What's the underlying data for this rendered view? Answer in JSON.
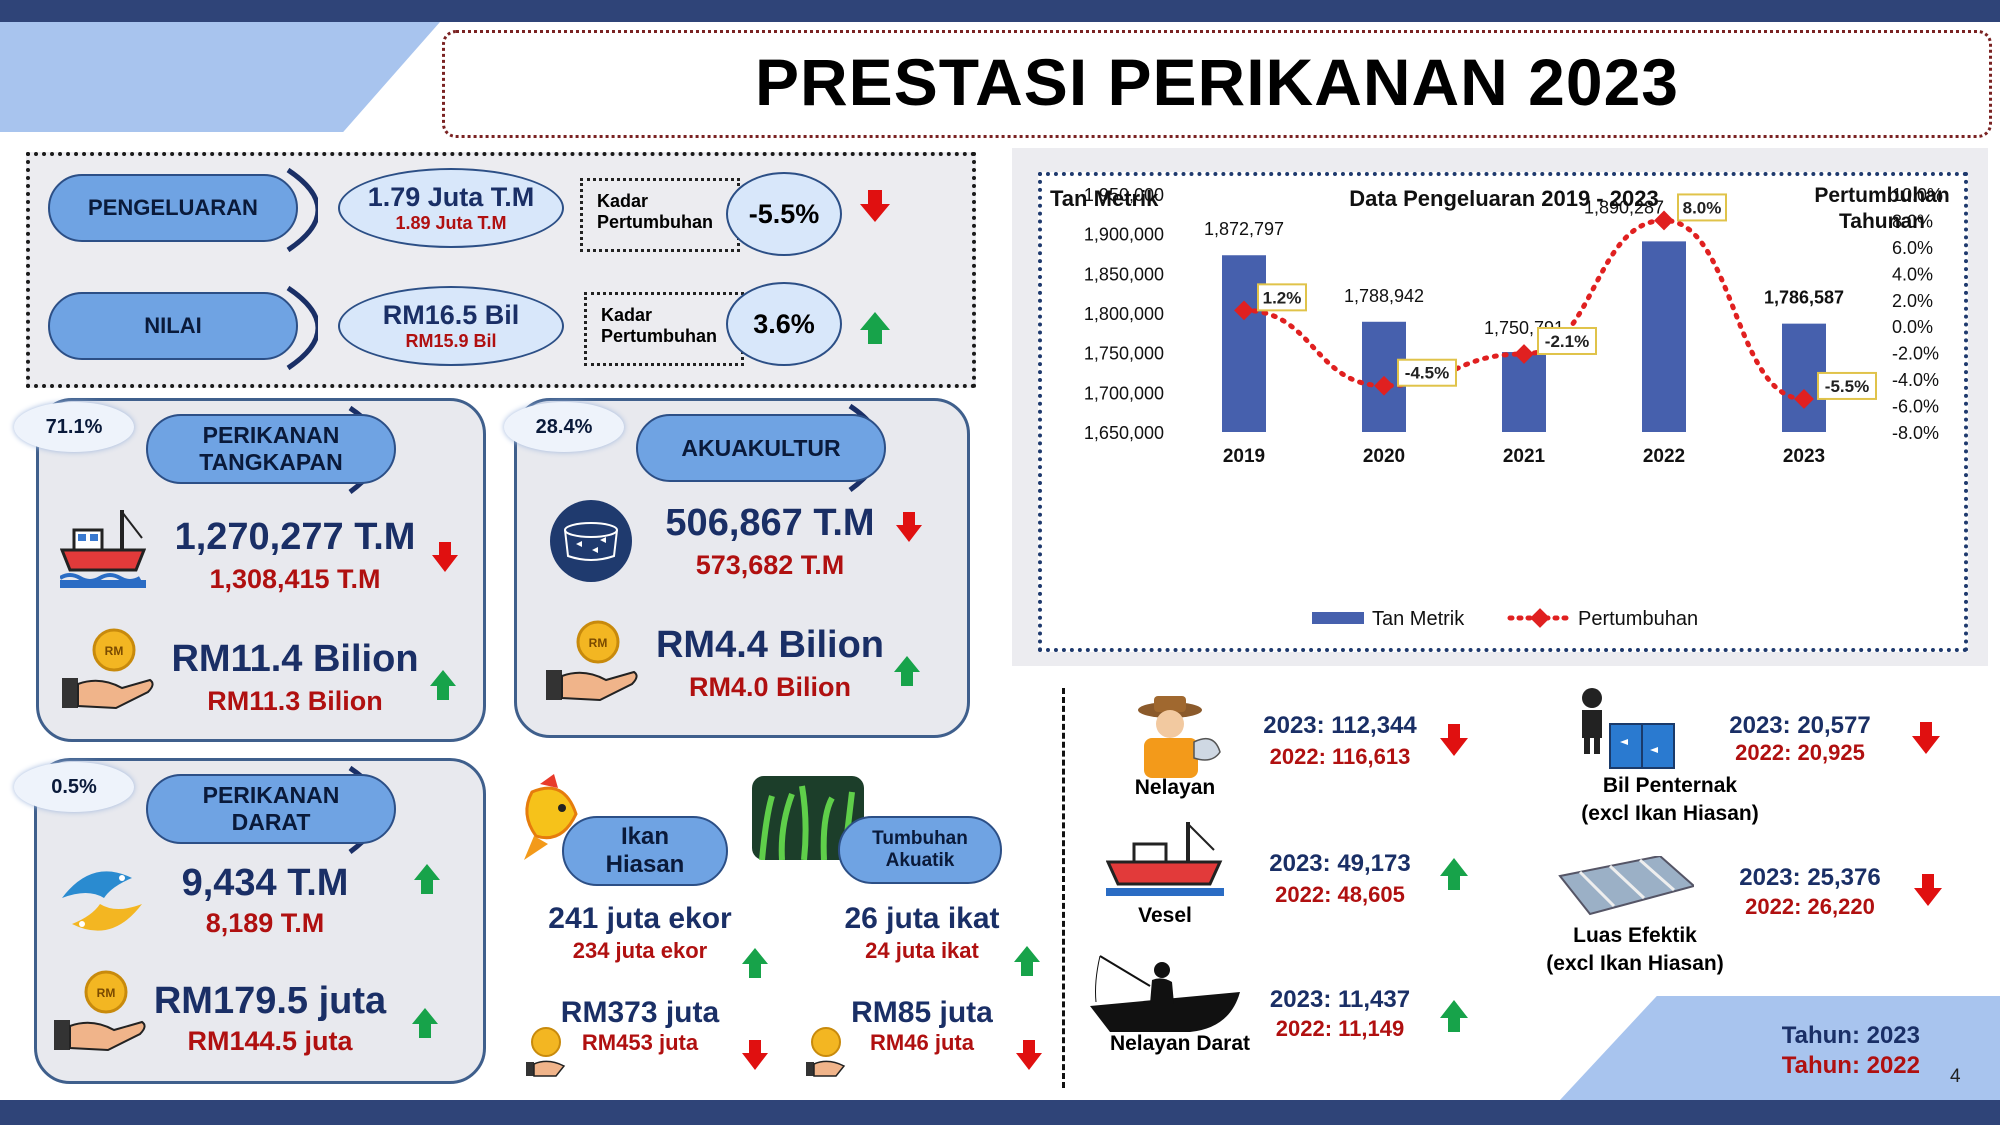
{
  "title": "PRESTASI PERIKANAN 2023",
  "summary": {
    "pengeluaran": {
      "label": "PENGELUARAN",
      "value": "1.79 Juta T.M",
      "prev": "1.89 Juta T.M",
      "kadar_label1": "Kadar",
      "kadar_label2": "Pertumbuhan",
      "rate": "-5.5%"
    },
    "nilai": {
      "label": "NILAI",
      "value": "RM16.5 Bil",
      "prev": "RM15.9 Bil",
      "kadar_label1": "Kadar",
      "kadar_label2": "Pertumbuhan",
      "rate": "3.6%"
    }
  },
  "tangkapan": {
    "share": "71.1%",
    "label1": "PERIKANAN",
    "label2": "TANGKAPAN",
    "qty": "1,270,277 T.M",
    "qty_prev": "1,308,415 T.M",
    "val": "RM11.4 Bilion",
    "val_prev": "RM11.3 Bilion"
  },
  "akuakultur": {
    "share": "28.4%",
    "label": "AKUAKULTUR",
    "qty": "506,867 T.M",
    "qty_prev": "573,682 T.M",
    "val": "RM4.4 Bilion",
    "val_prev": "RM4.0 Bilion"
  },
  "darat": {
    "share": "0.5%",
    "label1": "PERIKANAN",
    "label2": "DARAT",
    "qty": "9,434 T.M",
    "qty_prev": "8,189 T.M",
    "val": "RM179.5 juta",
    "val_prev": "RM144.5 juta"
  },
  "hiasan": {
    "label1": "Ikan",
    "label2": "Hiasan",
    "qty": "241 juta ekor",
    "qty_prev": "234 juta ekor",
    "val": "RM373 juta",
    "val_prev": "RM453 juta"
  },
  "tumbuhan": {
    "label1": "Tumbuhan",
    "label2": "Akuatik",
    "qty": "26 juta ikat",
    "qty_prev": "24 juta ikat",
    "val": "RM85 juta",
    "val_prev": "RM46 juta"
  },
  "stats": {
    "nelayan": {
      "label": "Nelayan",
      "y2023": "2023: 112,344",
      "y2022": "2022: 116,613"
    },
    "vesel": {
      "label": "Vesel",
      "y2023": "2023: 49,173",
      "y2022": "2022: 48,605"
    },
    "darat": {
      "label": "Nelayan Darat",
      "y2023": "2023: 11,437",
      "y2022": "2022: 11,149"
    },
    "penternak": {
      "label1": "Bil Penternak",
      "label2": "(excl Ikan Hiasan)",
      "y2023": "2023: 20,577",
      "y2022": "2022: 20,925"
    },
    "luas": {
      "label1": "Luas Efektik",
      "label2": "(excl Ikan Hiasan)",
      "y2023": "2023: 25,376",
      "y2022": "2022: 26,220"
    }
  },
  "legend_year": {
    "y2023": "Tahun: 2023",
    "y2022": "Tahun: 2022"
  },
  "page_number": "4",
  "icon_labels": {
    "coin": "RM"
  },
  "colors": {
    "navy": "#2f4478",
    "bar": "#4660ad",
    "line": "#e02020",
    "up": "#17a34a",
    "down": "#e01010"
  },
  "chart_data": {
    "type": "bar",
    "title": "Data Pengeluaran 2019 - 2023",
    "ylabel": "Tan Metrik",
    "y2label1": "Pertumbuhan",
    "y2label2": "Tahunan",
    "categories": [
      "2019",
      "2020",
      "2021",
      "2022",
      "2023"
    ],
    "ylim": [
      1650000,
      1950000
    ],
    "y2lim": [
      -8.0,
      10.0
    ],
    "yticks": [
      "1,650,000",
      "1,700,000",
      "1,750,000",
      "1,800,000",
      "1,850,000",
      "1,900,000",
      "1,950,000"
    ],
    "y2ticks": [
      "-8.0%",
      "-6.0%",
      "-4.0%",
      "-2.0%",
      "0.0%",
      "2.0%",
      "4.0%",
      "6.0%",
      "8.0%",
      "10.0%"
    ],
    "series": [
      {
        "name": "Tan Metrik",
        "type": "bar",
        "values": [
          1872797,
          1788942,
          1750791,
          1890287,
          1786587
        ],
        "labels": [
          "1,872,797",
          "1,788,942",
          "1,750,791",
          "1,890,287",
          "1,786,587"
        ]
      },
      {
        "name": "Pertumbuhan",
        "type": "line",
        "axis": "y2",
        "values": [
          1.2,
          -4.5,
          -2.1,
          8.0,
          -5.5
        ],
        "labels": [
          "1.2%",
          "-4.5%",
          "-2.1%",
          "8.0%",
          "-5.5%"
        ]
      }
    ],
    "legend_position": "bottom"
  }
}
